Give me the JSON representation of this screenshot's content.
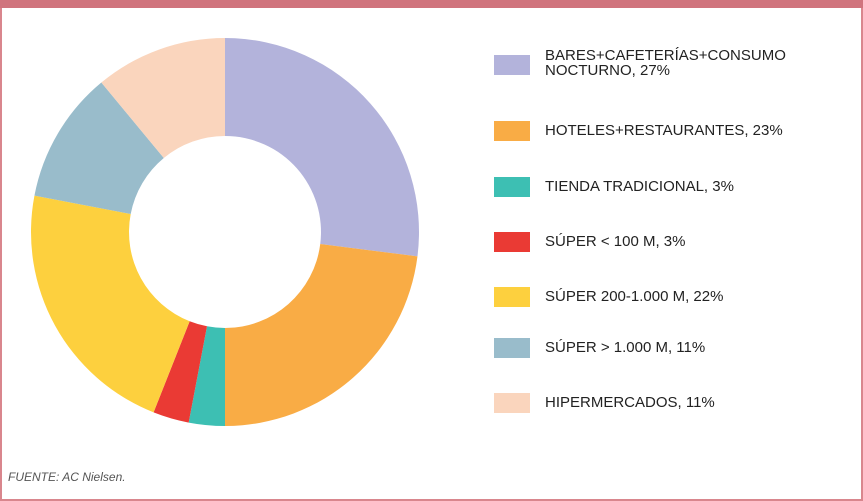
{
  "chart_data": {
    "type": "donut",
    "categories": [
      "BARES+CAFETERÍAS+CONSUMO NOCTURNO, 27%",
      "HOTELES+RESTAURANTES, 23%",
      "TIENDA TRADICIONAL, 3%",
      "SÚPER < 100 M, 3%",
      "SÚPER 200-1.000 M, 22%",
      "SÚPER > 1.000 M, 11%",
      "HIPERMERCADOS, 11%"
    ],
    "values": [
      27,
      23,
      3,
      3,
      22,
      11,
      11
    ],
    "colors": [
      "#b3b3db",
      "#f9ac45",
      "#3dbfb3",
      "#ea3a34",
      "#fdd03e",
      "#99bccb",
      "#fad5bd"
    ],
    "legend": "right",
    "note": "FUENTE: AC Nielsen."
  }
}
